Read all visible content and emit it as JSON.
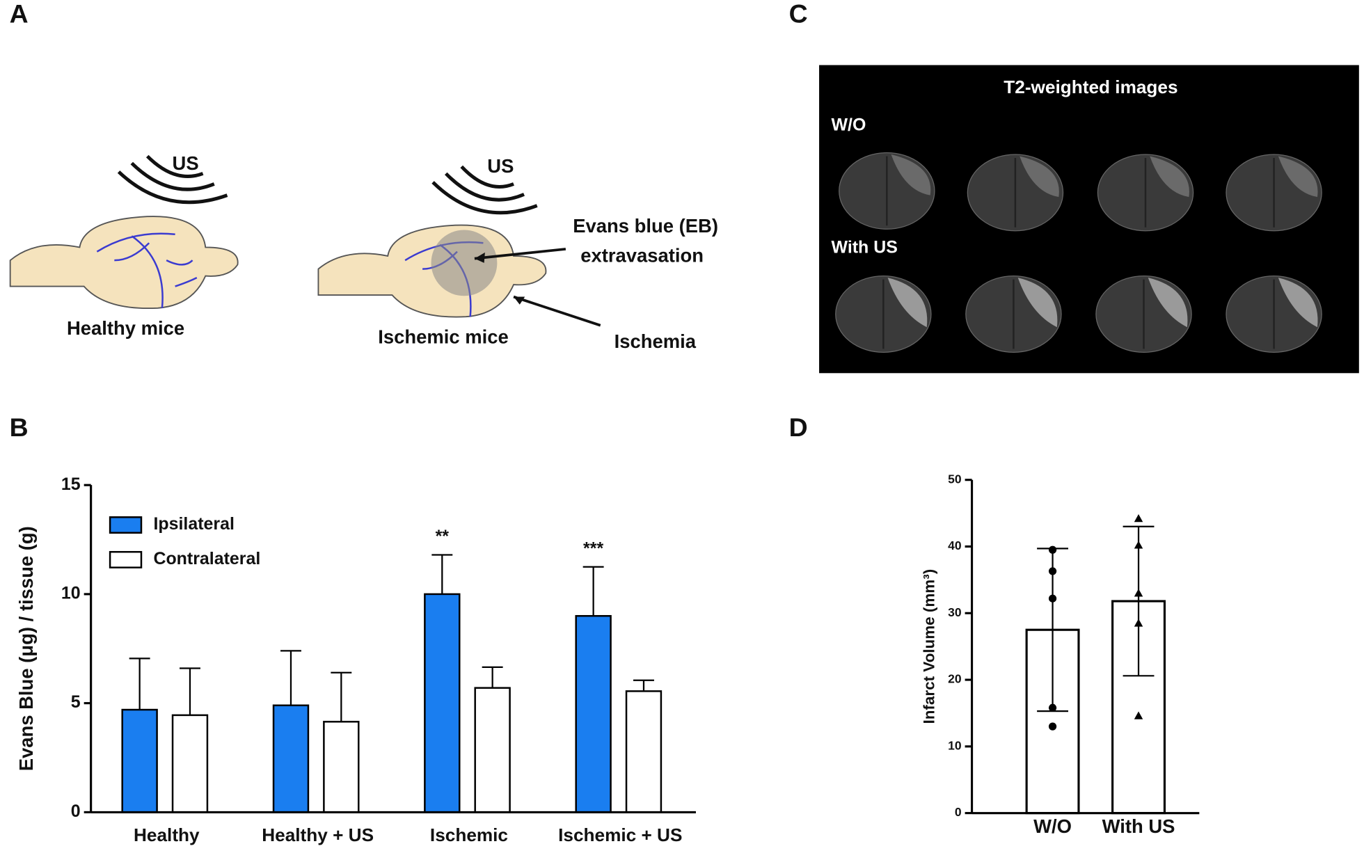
{
  "panel_labels": [
    "A",
    "B",
    "C",
    "D"
  ],
  "panel_a": {
    "healthy": {
      "us": "US",
      "label": "Healthy mice"
    },
    "ischemic": {
      "us": "US",
      "label": "Ischemic mice",
      "eb": [
        "Evans blue (EB)",
        "extravasation"
      ],
      "ischemia": "Ischemia"
    }
  },
  "panel_c": {
    "title": "T2-weighted images",
    "rows": [
      "W/O",
      "With US"
    ]
  },
  "chart_data": [
    {
      "type": "bar",
      "ylabel": "Evans Blue (μg) / tissue (g)",
      "categories": [
        "Healthy",
        "Healthy + US",
        "Ischemic",
        "Ischemic + US"
      ],
      "series": [
        {
          "name": "Ipsilateral",
          "color": "#1a7ef0",
          "values": [
            4.7,
            4.9,
            10.0,
            9.0
          ],
          "errors": [
            2.35,
            2.5,
            1.8,
            2.25
          ],
          "annotations": [
            null,
            null,
            "**",
            "***"
          ]
        },
        {
          "name": "Contralateral",
          "color": "#ffffff",
          "values": [
            4.45,
            4.15,
            5.7,
            5.55
          ],
          "errors": [
            2.15,
            2.25,
            0.95,
            0.5
          ]
        }
      ],
      "ylim": [
        0,
        15
      ],
      "yticks": [
        0,
        5,
        10,
        15
      ],
      "legend": "top-left"
    },
    {
      "type": "bar_scatter",
      "ylabel": "Infarct Volume (mm³)",
      "categories": [
        "W/O",
        "With US"
      ],
      "color": "#ffffff",
      "values": [
        27.5,
        31.8
      ],
      "errors": [
        12.2,
        11.2
      ],
      "points": [
        [
          39.5,
          36.3,
          32.2,
          15.8,
          13.0
        ],
        [
          44.2,
          40.2,
          33.0,
          28.5,
          14.6
        ]
      ],
      "markers": [
        "circle",
        "triangle"
      ],
      "ylim": [
        0,
        50
      ],
      "yticks": [
        0,
        10,
        20,
        30,
        40,
        50
      ]
    }
  ]
}
